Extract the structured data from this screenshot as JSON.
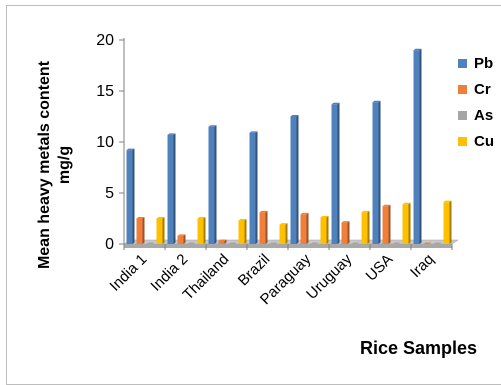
{
  "chart_data": {
    "type": "bar",
    "style": "3d-clustered",
    "categories": [
      "India 1",
      "India 2",
      "Thailand",
      "Brazil",
      "Paraguay",
      "Uruguay",
      "USA",
      "Iraq"
    ],
    "series": [
      {
        "name": "Pb",
        "color": "#4f81bd",
        "values": [
          9.2,
          10.7,
          11.5,
          10.9,
          12.5,
          13.7,
          13.9,
          19.0
        ]
      },
      {
        "name": "Cr",
        "color": "#f07f3c",
        "values": [
          2.5,
          0.8,
          0.3,
          3.1,
          2.9,
          2.1,
          3.7,
          0.0
        ]
      },
      {
        "name": "As",
        "color": "#a5a5a5",
        "values": [
          0.0,
          0.0,
          0.0,
          0.0,
          0.0,
          0.0,
          0.0,
          0.0
        ]
      },
      {
        "name": "Cu",
        "color": "#ffc000",
        "values": [
          2.5,
          2.5,
          2.3,
          1.9,
          2.6,
          3.1,
          3.9,
          4.1
        ]
      }
    ],
    "ylabel_lines": [
      "Mean heavy metals content",
      "mg/g"
    ],
    "xlabel": "Rice Samples",
    "ylim": [
      0,
      20
    ],
    "yticks": [
      0,
      5,
      10,
      15,
      20
    ],
    "grid": false,
    "legend_position": "right"
  }
}
